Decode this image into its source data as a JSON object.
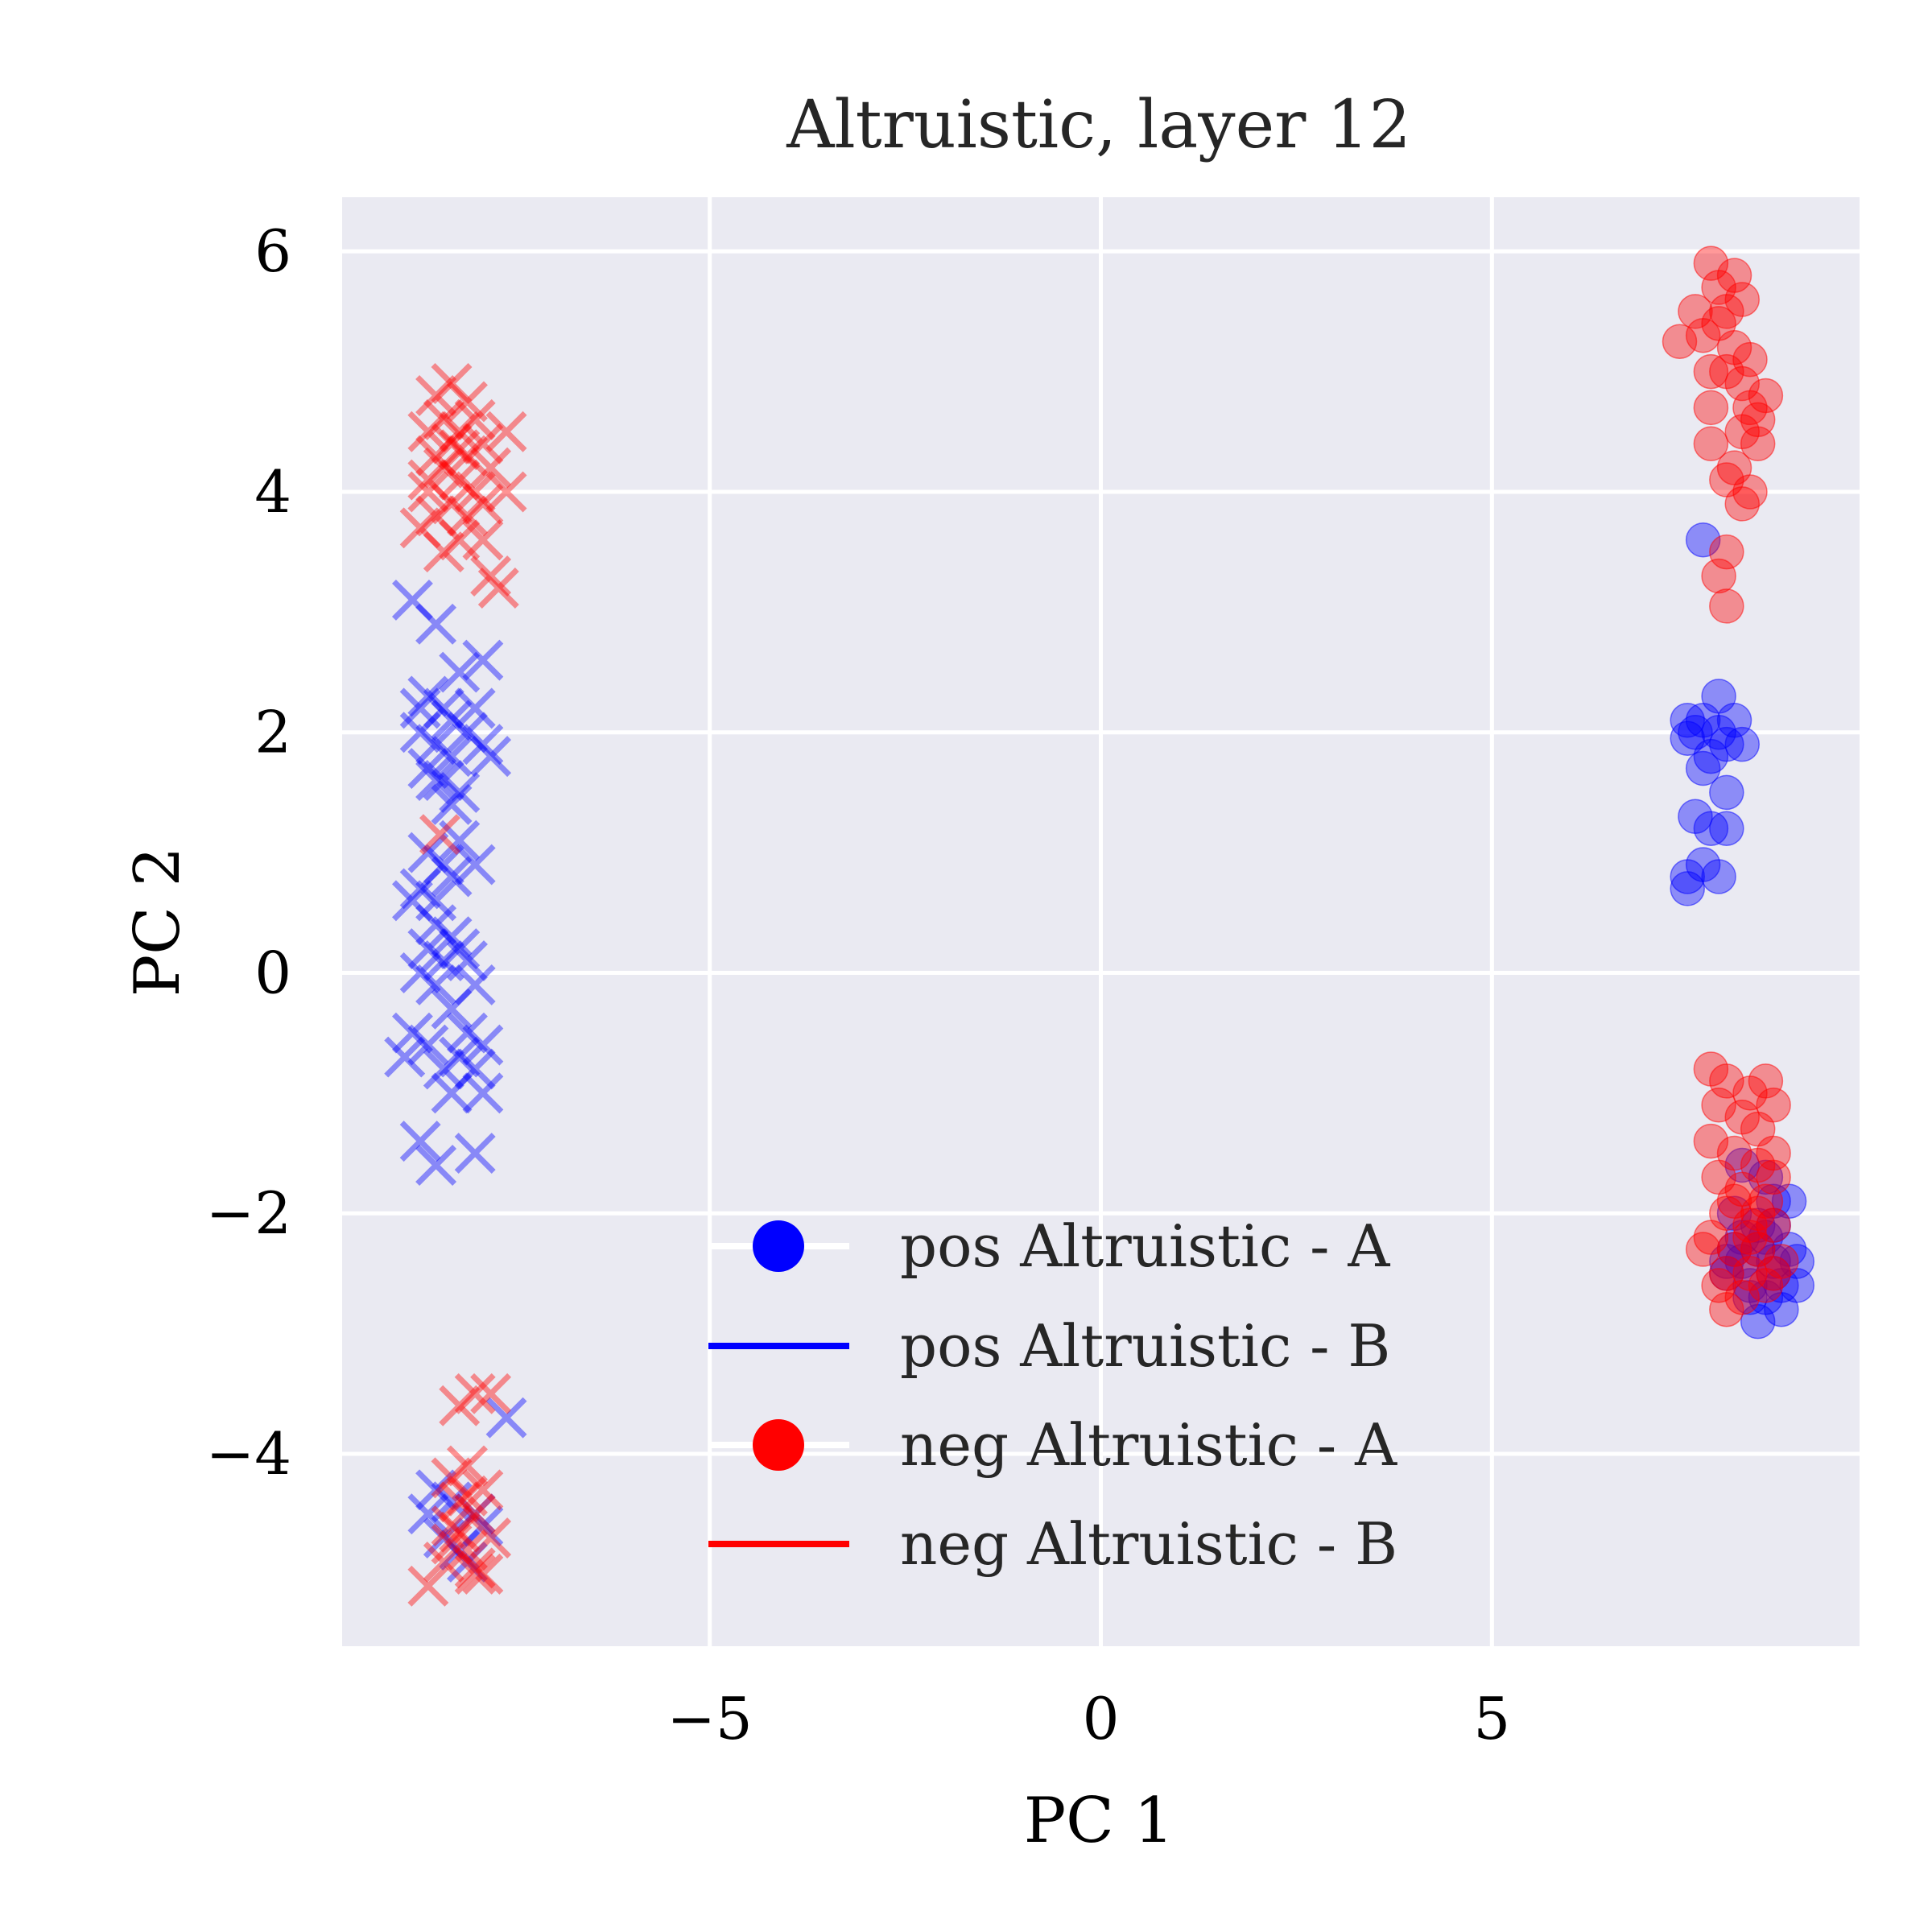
{
  "chart_data": {
    "type": "scatter",
    "title": "Altruistic, layer 12",
    "xlabel": "PC 1",
    "ylabel": "PC 2",
    "xlim": [
      -9.7,
      9.7
    ],
    "ylim": [
      -5.6,
      6.45
    ],
    "xticks": [
      -5,
      0,
      5
    ],
    "xtick_labels": [
      "−5",
      "0",
      "5"
    ],
    "yticks": [
      -4,
      -2,
      0,
      2,
      4,
      6
    ],
    "ytick_labels": [
      "−4",
      "−2",
      "0",
      "2",
      "4",
      "6"
    ],
    "grid": true,
    "legend_position": "lower-center",
    "colors": {
      "pos": "#0000ff",
      "neg": "#ff0000",
      "plot_bg": "#eaeaf2",
      "grid": "#ffffff"
    },
    "legend": [
      {
        "label": "pos Altruistic - A",
        "color": "#0000ff",
        "marker": "circle"
      },
      {
        "label": "pos Altruistic - B",
        "color": "#0000ff",
        "marker": "line"
      },
      {
        "label": "neg Altruistic - A",
        "color": "#ff0000",
        "marker": "circle"
      },
      {
        "label": "neg Altruistic - B",
        "color": "#ff0000",
        "marker": "line"
      }
    ],
    "series": [
      {
        "name": "pos Altruistic - A",
        "color": "#0000ff",
        "marker": "circle",
        "points": [
          [
            7.7,
            3.6
          ],
          [
            7.7,
            2.1
          ],
          [
            7.9,
            2.3
          ],
          [
            7.6,
            2.0
          ],
          [
            8.0,
            1.9
          ],
          [
            8.1,
            2.1
          ],
          [
            7.8,
            1.8
          ],
          [
            7.5,
            2.1
          ],
          [
            7.9,
            2.0
          ],
          [
            7.7,
            1.7
          ],
          [
            8.2,
            1.9
          ],
          [
            7.5,
            1.95
          ],
          [
            8.0,
            1.5
          ],
          [
            7.6,
            1.3
          ],
          [
            7.8,
            1.2
          ],
          [
            8.0,
            1.2
          ],
          [
            7.5,
            0.8
          ],
          [
            7.7,
            0.9
          ],
          [
            7.9,
            0.8
          ],
          [
            7.5,
            0.7
          ],
          [
            8.2,
            -2.2
          ],
          [
            8.4,
            -2.3
          ],
          [
            8.6,
            -2.4
          ],
          [
            8.0,
            -2.5
          ],
          [
            8.8,
            -1.9
          ],
          [
            8.6,
            -2.1
          ],
          [
            8.3,
            -2.6
          ],
          [
            8.5,
            -2.7
          ],
          [
            8.7,
            -2.6
          ],
          [
            8.1,
            -2.0
          ],
          [
            8.9,
            -2.6
          ],
          [
            8.4,
            -2.9
          ],
          [
            8.7,
            -2.8
          ],
          [
            8.2,
            -2.4
          ],
          [
            8.5,
            -2.2
          ],
          [
            8.8,
            -2.3
          ],
          [
            8.3,
            -2.7
          ],
          [
            8.6,
            -2.5
          ],
          [
            8.1,
            -2.3
          ],
          [
            8.9,
            -2.4
          ],
          [
            8.2,
            -1.6
          ],
          [
            8.5,
            -1.7
          ],
          [
            8.4,
            -2.1
          ],
          [
            8.0,
            -2.4
          ],
          [
            8.6,
            -1.9
          ]
        ]
      },
      {
        "name": "pos Altruistic - B",
        "color": "#0000ff",
        "marker": "x",
        "points": [
          [
            -8.8,
            3.1
          ],
          [
            -8.5,
            2.9
          ],
          [
            -8.2,
            2.5
          ],
          [
            -7.9,
            2.6
          ],
          [
            -8.6,
            2.3
          ],
          [
            -8.4,
            2.2
          ],
          [
            -8.7,
            2.0
          ],
          [
            -8.5,
            1.9
          ],
          [
            -8.3,
            1.8
          ],
          [
            -8.1,
            2.0
          ],
          [
            -8.6,
            1.7
          ],
          [
            -8.4,
            1.6
          ],
          [
            -8.2,
            1.5
          ],
          [
            -7.9,
            1.9
          ],
          [
            -7.8,
            1.8
          ],
          [
            -8.7,
            2.2
          ],
          [
            -8.3,
            2.1
          ],
          [
            -8.0,
            2.2
          ],
          [
            -8.5,
            1.6
          ],
          [
            -8.3,
            1.4
          ],
          [
            -8.6,
            1.0
          ],
          [
            -8.4,
            0.9
          ],
          [
            -8.2,
            1.1
          ],
          [
            -8.7,
            0.7
          ],
          [
            -8.5,
            0.6
          ],
          [
            -8.3,
            0.8
          ],
          [
            -8.0,
            0.9
          ],
          [
            -8.8,
            0.6
          ],
          [
            -8.5,
            0.4
          ],
          [
            -8.3,
            0.3
          ],
          [
            -8.6,
            0.2
          ],
          [
            -8.4,
            0.1
          ],
          [
            -8.2,
            0.2
          ],
          [
            -8.7,
            0.0
          ],
          [
            -8.5,
            -0.1
          ],
          [
            -8.1,
            0.1
          ],
          [
            -8.0,
            -0.1
          ],
          [
            -8.3,
            -0.3
          ],
          [
            -8.8,
            -0.5
          ],
          [
            -8.6,
            -0.6
          ],
          [
            -8.4,
            -0.8
          ],
          [
            -8.1,
            -0.5
          ],
          [
            -7.9,
            -0.6
          ],
          [
            -8.2,
            -0.7
          ],
          [
            -8.0,
            -0.8
          ],
          [
            -7.9,
            -1.0
          ],
          [
            -8.3,
            -1.0
          ],
          [
            -8.9,
            -0.7
          ],
          [
            -8.7,
            -1.4
          ],
          [
            -8.5,
            -1.6
          ],
          [
            -8.0,
            -1.5
          ],
          [
            -8.6,
            -4.5
          ],
          [
            -8.4,
            -4.7
          ],
          [
            -8.1,
            -4.9
          ],
          [
            -8.3,
            -4.4
          ],
          [
            -7.9,
            -4.6
          ],
          [
            -8.5,
            -4.3
          ],
          [
            -7.6,
            -3.7
          ],
          [
            -8.2,
            -4.8
          ],
          [
            -8.0,
            -4.5
          ]
        ]
      },
      {
        "name": "neg Altruistic - A",
        "color": "#ff0000",
        "marker": "circle",
        "points": [
          [
            7.8,
            5.9
          ],
          [
            8.1,
            5.8
          ],
          [
            7.9,
            5.7
          ],
          [
            8.0,
            5.5
          ],
          [
            8.2,
            5.6
          ],
          [
            7.6,
            5.5
          ],
          [
            7.9,
            5.4
          ],
          [
            7.7,
            5.3
          ],
          [
            8.1,
            5.2
          ],
          [
            7.4,
            5.25
          ],
          [
            8.3,
            5.1
          ],
          [
            8.0,
            5.0
          ],
          [
            8.2,
            4.9
          ],
          [
            7.8,
            5.0
          ],
          [
            8.5,
            4.8
          ],
          [
            8.3,
            4.7
          ],
          [
            7.8,
            4.7
          ],
          [
            8.4,
            4.6
          ],
          [
            8.2,
            4.5
          ],
          [
            7.8,
            4.4
          ],
          [
            8.4,
            4.4
          ],
          [
            8.1,
            4.2
          ],
          [
            8.3,
            4.0
          ],
          [
            8.0,
            4.1
          ],
          [
            8.2,
            3.9
          ],
          [
            8.0,
            3.5
          ],
          [
            7.9,
            3.3
          ],
          [
            8.0,
            3.05
          ],
          [
            7.8,
            -0.8
          ],
          [
            8.0,
            -0.9
          ],
          [
            8.3,
            -1.0
          ],
          [
            8.5,
            -0.9
          ],
          [
            8.6,
            -1.1
          ],
          [
            8.2,
            -1.2
          ],
          [
            7.9,
            -1.1
          ],
          [
            8.4,
            -1.3
          ],
          [
            7.8,
            -1.4
          ],
          [
            8.1,
            -1.5
          ],
          [
            8.4,
            -1.6
          ],
          [
            8.6,
            -1.7
          ],
          [
            7.9,
            -1.7
          ],
          [
            8.2,
            -1.8
          ],
          [
            8.5,
            -1.9
          ],
          [
            8.0,
            -2.0
          ],
          [
            8.3,
            -2.1
          ],
          [
            8.6,
            -2.1
          ],
          [
            7.8,
            -2.2
          ],
          [
            8.1,
            -2.3
          ],
          [
            8.4,
            -2.3
          ],
          [
            8.7,
            -2.4
          ],
          [
            8.0,
            -2.5
          ],
          [
            8.3,
            -2.5
          ],
          [
            8.6,
            -2.5
          ],
          [
            7.9,
            -2.6
          ],
          [
            8.2,
            -2.7
          ],
          [
            8.5,
            -2.6
          ],
          [
            8.0,
            -2.8
          ],
          [
            8.3,
            -2.2
          ],
          [
            8.4,
            -2.0
          ],
          [
            7.7,
            -2.3
          ],
          [
            8.6,
            -1.5
          ],
          [
            8.1,
            -1.9
          ]
        ]
      },
      {
        "name": "neg Altruistic - B",
        "color": "#ff0000",
        "marker": "x",
        "points": [
          [
            -8.3,
            4.9
          ],
          [
            -8.5,
            4.8
          ],
          [
            -8.1,
            4.75
          ],
          [
            -8.0,
            4.6
          ],
          [
            -8.4,
            4.6
          ],
          [
            -8.2,
            4.5
          ],
          [
            -8.6,
            4.5
          ],
          [
            -7.6,
            4.5
          ],
          [
            -8.3,
            4.4
          ],
          [
            -7.9,
            4.4
          ],
          [
            -8.5,
            4.3
          ],
          [
            -8.1,
            4.3
          ],
          [
            -8.4,
            4.2
          ],
          [
            -7.8,
            4.2
          ],
          [
            -8.2,
            4.1
          ],
          [
            -8.6,
            4.0
          ],
          [
            -8.0,
            4.0
          ],
          [
            -8.3,
            3.9
          ],
          [
            -7.9,
            3.9
          ],
          [
            -7.6,
            4.0
          ],
          [
            -8.5,
            3.8
          ],
          [
            -8.1,
            3.8
          ],
          [
            -8.7,
            3.7
          ],
          [
            -8.2,
            3.6
          ],
          [
            -7.9,
            3.6
          ],
          [
            -8.4,
            3.5
          ],
          [
            -7.8,
            3.3
          ],
          [
            -7.7,
            3.2
          ],
          [
            -8.6,
            4.1
          ],
          [
            -8.2,
            4.35
          ],
          [
            -8.45,
            1.15
          ],
          [
            -8.0,
            -3.5
          ],
          [
            -8.2,
            -3.6
          ],
          [
            -7.8,
            -3.5
          ],
          [
            -8.1,
            -4.1
          ],
          [
            -8.3,
            -4.2
          ],
          [
            -7.9,
            -4.3
          ],
          [
            -8.2,
            -4.4
          ],
          [
            -8.0,
            -4.5
          ],
          [
            -8.3,
            -4.6
          ],
          [
            -7.8,
            -4.7
          ],
          [
            -8.1,
            -4.8
          ],
          [
            -8.4,
            -4.9
          ],
          [
            -8.0,
            -5.0
          ],
          [
            -8.6,
            -5.1
          ],
          [
            -7.9,
            -5.0
          ],
          [
            -8.2,
            -4.65
          ],
          [
            -8.1,
            -4.35
          ],
          [
            -8.0,
            -4.95
          ],
          [
            -8.3,
            -4.75
          ]
        ]
      }
    ]
  }
}
